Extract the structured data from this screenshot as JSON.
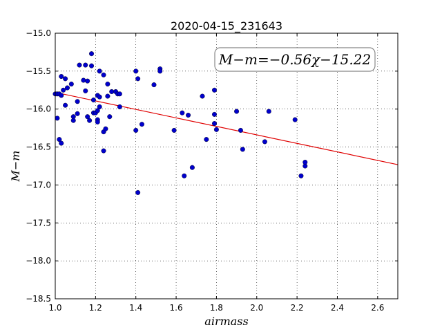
{
  "chart_data": {
    "type": "scatter",
    "title": "2020-04-15_231643",
    "xlabel": "airmass",
    "ylabel": "M−m",
    "xlim": [
      1.0,
      2.7
    ],
    "ylim": [
      -15.0,
      -18.5
    ],
    "y_inverted": true,
    "x_ticks": [
      "1.0",
      "1.2",
      "1.4",
      "1.6",
      "1.8",
      "2.0",
      "2.2",
      "2.4",
      "2.6"
    ],
    "y_ticks": [
      "−15.0",
      "−15.5",
      "−16.0",
      "−16.5",
      "−17.0",
      "−17.5",
      "−18.0",
      "−18.5"
    ],
    "grid": true,
    "annotation": "M−m=−0.56χ−15.22",
    "point_color": "#0000cc",
    "fit_color": "#e00000",
    "fit": {
      "slope": -0.56,
      "intercept": -15.22
    },
    "points": [
      {
        "x": 1.0,
        "y": -15.8
      },
      {
        "x": 1.01,
        "y": -15.8
      },
      {
        "x": 1.01,
        "y": -16.12
      },
      {
        "x": 1.02,
        "y": -16.4
      },
      {
        "x": 1.03,
        "y": -16.45
      },
      {
        "x": 1.02,
        "y": -15.8
      },
      {
        "x": 1.03,
        "y": -15.82
      },
      {
        "x": 1.04,
        "y": -15.75
      },
      {
        "x": 1.03,
        "y": -15.57
      },
      {
        "x": 1.05,
        "y": -15.6
      },
      {
        "x": 1.05,
        "y": -15.95
      },
      {
        "x": 1.06,
        "y": -15.72
      },
      {
        "x": 1.08,
        "y": -15.67
      },
      {
        "x": 1.09,
        "y": -16.1
      },
      {
        "x": 1.09,
        "y": -16.15
      },
      {
        "x": 1.11,
        "y": -15.9
      },
      {
        "x": 1.11,
        "y": -16.06
      },
      {
        "x": 1.12,
        "y": -15.42
      },
      {
        "x": 1.14,
        "y": -15.62
      },
      {
        "x": 1.15,
        "y": -15.76
      },
      {
        "x": 1.15,
        "y": -15.42
      },
      {
        "x": 1.16,
        "y": -15.63
      },
      {
        "x": 1.16,
        "y": -16.1
      },
      {
        "x": 1.17,
        "y": -16.15
      },
      {
        "x": 1.18,
        "y": -15.43
      },
      {
        "x": 1.18,
        "y": -15.27
      },
      {
        "x": 1.19,
        "y": -15.88
      },
      {
        "x": 1.19,
        "y": -16.05
      },
      {
        "x": 1.2,
        "y": -16.05
      },
      {
        "x": 1.21,
        "y": -16.14
      },
      {
        "x": 1.21,
        "y": -16.17
      },
      {
        "x": 1.21,
        "y": -15.82
      },
      {
        "x": 1.21,
        "y": -16.02
      },
      {
        "x": 1.22,
        "y": -15.84
      },
      {
        "x": 1.22,
        "y": -15.97
      },
      {
        "x": 1.22,
        "y": -15.5
      },
      {
        "x": 1.24,
        "y": -15.55
      },
      {
        "x": 1.24,
        "y": -16.3
      },
      {
        "x": 1.25,
        "y": -16.26
      },
      {
        "x": 1.24,
        "y": -16.55
      },
      {
        "x": 1.26,
        "y": -15.67
      },
      {
        "x": 1.26,
        "y": -15.83
      },
      {
        "x": 1.27,
        "y": -16.1
      },
      {
        "x": 1.28,
        "y": -15.77
      },
      {
        "x": 1.3,
        "y": -15.77
      },
      {
        "x": 1.31,
        "y": -15.8
      },
      {
        "x": 1.32,
        "y": -15.8
      },
      {
        "x": 1.32,
        "y": -15.97
      },
      {
        "x": 1.4,
        "y": -15.5
      },
      {
        "x": 1.41,
        "y": -15.6
      },
      {
        "x": 1.4,
        "y": -16.28
      },
      {
        "x": 1.41,
        "y": -17.1
      },
      {
        "x": 1.43,
        "y": -16.2
      },
      {
        "x": 1.49,
        "y": -15.68
      },
      {
        "x": 1.52,
        "y": -15.47
      },
      {
        "x": 1.52,
        "y": -15.5
      },
      {
        "x": 1.59,
        "y": -16.28
      },
      {
        "x": 1.63,
        "y": -16.05
      },
      {
        "x": 1.64,
        "y": -16.88
      },
      {
        "x": 1.66,
        "y": -16.08
      },
      {
        "x": 1.68,
        "y": -16.77
      },
      {
        "x": 1.73,
        "y": -15.83
      },
      {
        "x": 1.75,
        "y": -16.4
      },
      {
        "x": 1.79,
        "y": -15.75
      },
      {
        "x": 1.79,
        "y": -16.07
      },
      {
        "x": 1.79,
        "y": -16.19
      },
      {
        "x": 1.8,
        "y": -16.27
      },
      {
        "x": 1.9,
        "y": -16.03
      },
      {
        "x": 1.92,
        "y": -16.28
      },
      {
        "x": 1.93,
        "y": -16.53
      },
      {
        "x": 2.04,
        "y": -16.43
      },
      {
        "x": 2.06,
        "y": -16.03
      },
      {
        "x": 2.19,
        "y": -16.14
      },
      {
        "x": 2.22,
        "y": -16.88
      },
      {
        "x": 2.24,
        "y": -16.75
      },
      {
        "x": 2.24,
        "y": -16.7
      }
    ]
  }
}
